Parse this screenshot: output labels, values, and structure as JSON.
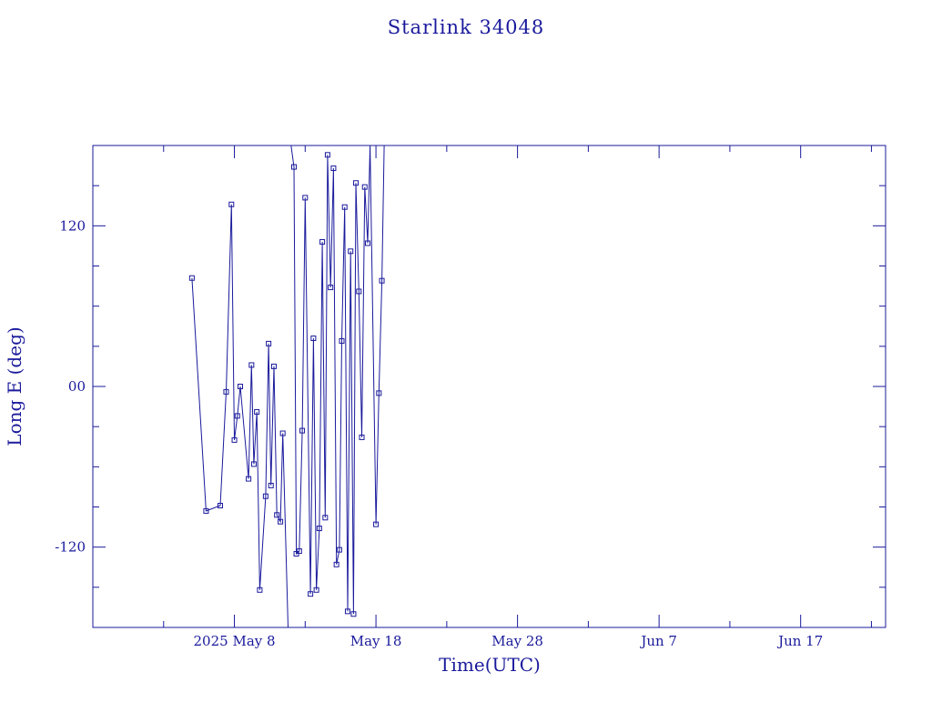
{
  "colors": {
    "ink": "#1a1a9c",
    "background": "#ffffff"
  },
  "chart_data": {
    "type": "line",
    "title": "Starlink 34048",
    "xlabel": "Time(UTC)",
    "ylabel": "Long E (deg)",
    "x_unit": "days",
    "xlim": [
      "2025-04-28T00:00",
      "2025-06-23T00:00"
    ],
    "ylim": [
      -180,
      180
    ],
    "x_ticks": [
      {
        "label": "2025 May  8",
        "value": "2025-05-08"
      },
      {
        "label": "May 18",
        "value": "2025-05-18"
      },
      {
        "label": "May 28",
        "value": "2025-05-28"
      },
      {
        "label": "Jun  7",
        "value": "2025-06-07"
      },
      {
        "label": "Jun 17",
        "value": "2025-06-17"
      }
    ],
    "y_ticks": [
      {
        "label": "-120",
        "value": -120
      },
      {
        "label": "00",
        "value": 0
      },
      {
        "label": "120",
        "value": 120
      }
    ],
    "y_minor_step": 30,
    "x_minor_step_days": 5,
    "grid": false,
    "markers": "open-square",
    "series": [
      {
        "points": [
          [
            "2025-05-05T00:00",
            81
          ],
          [
            "2025-05-06T00:00",
            -93
          ],
          [
            "2025-05-07T00:00",
            -89
          ],
          [
            "2025-05-07T10:00",
            -4
          ],
          [
            "2025-05-07T19:00",
            136
          ],
          [
            "2025-05-08T00:00",
            -40
          ],
          [
            "2025-05-08T05:00",
            -22
          ],
          [
            "2025-05-08T10:00",
            0
          ],
          [
            "2025-05-09T00:00",
            -69
          ],
          [
            "2025-05-09T05:00",
            16
          ],
          [
            "2025-05-09T09:00",
            -58
          ],
          [
            "2025-05-09T14:00",
            -19
          ],
          [
            "2025-05-09T19:00",
            -152
          ],
          [
            "2025-05-10T05:00",
            -82
          ],
          [
            "2025-05-10T10:00",
            32
          ],
          [
            "2025-05-10T14:00",
            -74
          ],
          [
            "2025-05-10T19:00",
            15
          ],
          [
            "2025-05-11T00:00",
            -96
          ],
          [
            "2025-05-11T06:00",
            -101
          ],
          [
            "2025-05-11T10:00",
            -35
          ],
          [
            "2025-05-11T19:00",
            -180
          ]
        ]
      },
      {
        "points": [
          [
            "2025-05-12T00:00",
            180
          ],
          [
            "2025-05-12T05:00",
            164
          ],
          [
            "2025-05-12T09:00",
            -125
          ],
          [
            "2025-05-12T14:00",
            -123
          ],
          [
            "2025-05-12T19:00",
            -33
          ],
          [
            "2025-05-13T00:00",
            141
          ],
          [
            "2025-05-13T09:00",
            -155
          ],
          [
            "2025-05-13T14:00",
            36
          ],
          [
            "2025-05-13T19:00",
            -152
          ],
          [
            "2025-05-14T00:00",
            -106
          ],
          [
            "2025-05-14T05:00",
            108
          ],
          [
            "2025-05-14T10:00",
            -98
          ],
          [
            "2025-05-14T14:00",
            173
          ],
          [
            "2025-05-14T19:00",
            74
          ],
          [
            "2025-05-15T00:00",
            163
          ],
          [
            "2025-05-15T05:00",
            -133
          ],
          [
            "2025-05-15T10:00",
            -122
          ],
          [
            "2025-05-15T14:00",
            34
          ],
          [
            "2025-05-15T19:00",
            134
          ],
          [
            "2025-05-16T00:00",
            -168
          ],
          [
            "2025-05-16T05:00",
            101
          ],
          [
            "2025-05-16T10:00",
            -170
          ],
          [
            "2025-05-16T14:00",
            152
          ],
          [
            "2025-05-16T19:00",
            71
          ],
          [
            "2025-05-17T00:00",
            -38
          ],
          [
            "2025-05-17T05:00",
            149
          ],
          [
            "2025-05-17T10:00",
            107
          ],
          [
            "2025-05-17T14:00",
            180
          ],
          [
            "2025-05-18T00:00",
            -103
          ],
          [
            "2025-05-18T05:00",
            -5
          ],
          [
            "2025-05-18T10:00",
            79
          ],
          [
            "2025-05-18T14:00",
            180
          ]
        ]
      }
    ]
  }
}
